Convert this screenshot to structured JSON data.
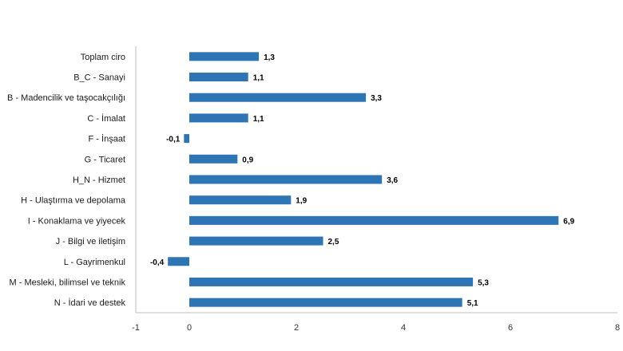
{
  "chart_data": {
    "type": "bar",
    "orientation": "horizontal",
    "categories": [
      "Toplam ciro",
      "B_C - Sanayi",
      "B - Madencilik ve taşocakçılığı",
      "C - İmalat",
      "F - İnşaat",
      "G - Ticaret",
      "H_N - Hizmet",
      "H - Ulaştırma ve depolama",
      "I - Konaklama ve yiyecek",
      "J - Bilgi ve iletişim",
      "L - Gayrimenkul",
      "M - Mesleki, bilimsel ve teknik",
      "N - İdari ve destek"
    ],
    "values": [
      1.3,
      1.1,
      3.3,
      1.1,
      -0.1,
      0.9,
      3.6,
      1.9,
      6.9,
      2.5,
      -0.4,
      5.3,
      5.1
    ],
    "value_labels": [
      "1,3",
      "1,1",
      "3,3",
      "1,1",
      "-0,1",
      "0,9",
      "3,6",
      "1,9",
      "6,9",
      "2,5",
      "-0,4",
      "5,3",
      "5,1"
    ],
    "xlim": [
      -1,
      8
    ],
    "xticks": [
      -1,
      0,
      2,
      4,
      6,
      8
    ],
    "xtick_labels": [
      "-1",
      "0",
      "2",
      "4",
      "6",
      "8"
    ],
    "bar_color": "#2e75b6",
    "axis_color": "#bfbfbf",
    "grid": false,
    "legend": "none"
  }
}
